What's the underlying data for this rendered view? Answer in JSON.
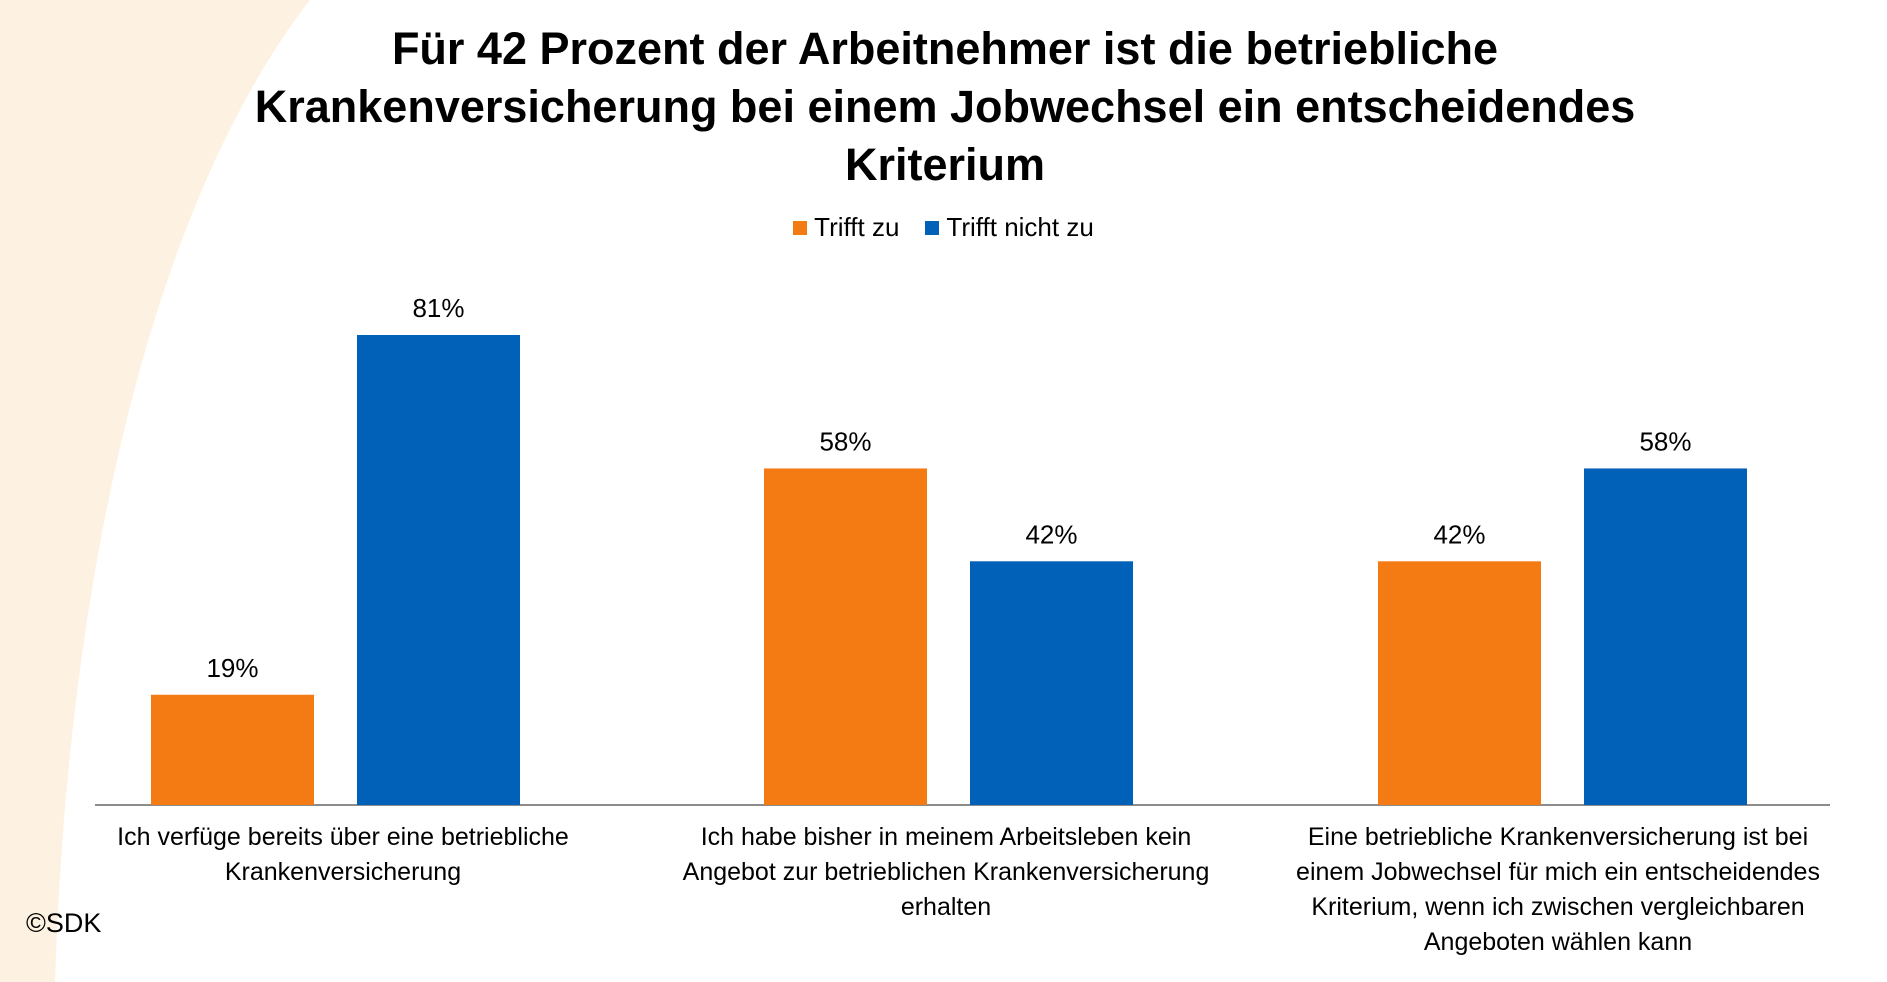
{
  "chart_data": {
    "type": "bar",
    "title_lines": [
      "Für 42 Prozent der Arbeitnehmer ist die betriebliche",
      "Krankenversicherung bei einem Jobwechsel ein entscheidendes",
      "Kriterium"
    ],
    "categories": [
      [
        "Ich verfüge bereits über eine betriebliche",
        "Krankenversicherung"
      ],
      [
        "Ich habe bisher in meinem Arbeitsleben kein",
        "Angebot zur betrieblichen Krankenversicherung",
        "erhalten"
      ],
      [
        "Eine betriebliche Krankenversicherung ist bei",
        "einem Jobwechsel für mich ein entscheidendes",
        "Kriterium, wenn ich zwischen vergleichbaren",
        "Angeboten wählen kann"
      ]
    ],
    "series": [
      {
        "name": "Trifft zu",
        "color": "#F47A14",
        "values": [
          19,
          58,
          42
        ],
        "labels": [
          "19%",
          "58%",
          "42%"
        ]
      },
      {
        "name": "Trifft nicht zu",
        "color": "#0160B8",
        "values": [
          81,
          42,
          58
        ],
        "labels": [
          "81%",
          "42%",
          "58%"
        ]
      }
    ],
    "ylim": [
      0,
      100
    ],
    "legend_position": "top",
    "grid": false
  },
  "footer": {
    "copyright": "©SDK"
  },
  "colors": {
    "backdrop_swoosh": "#FDF2E1",
    "axis": "#8C8C8C"
  }
}
